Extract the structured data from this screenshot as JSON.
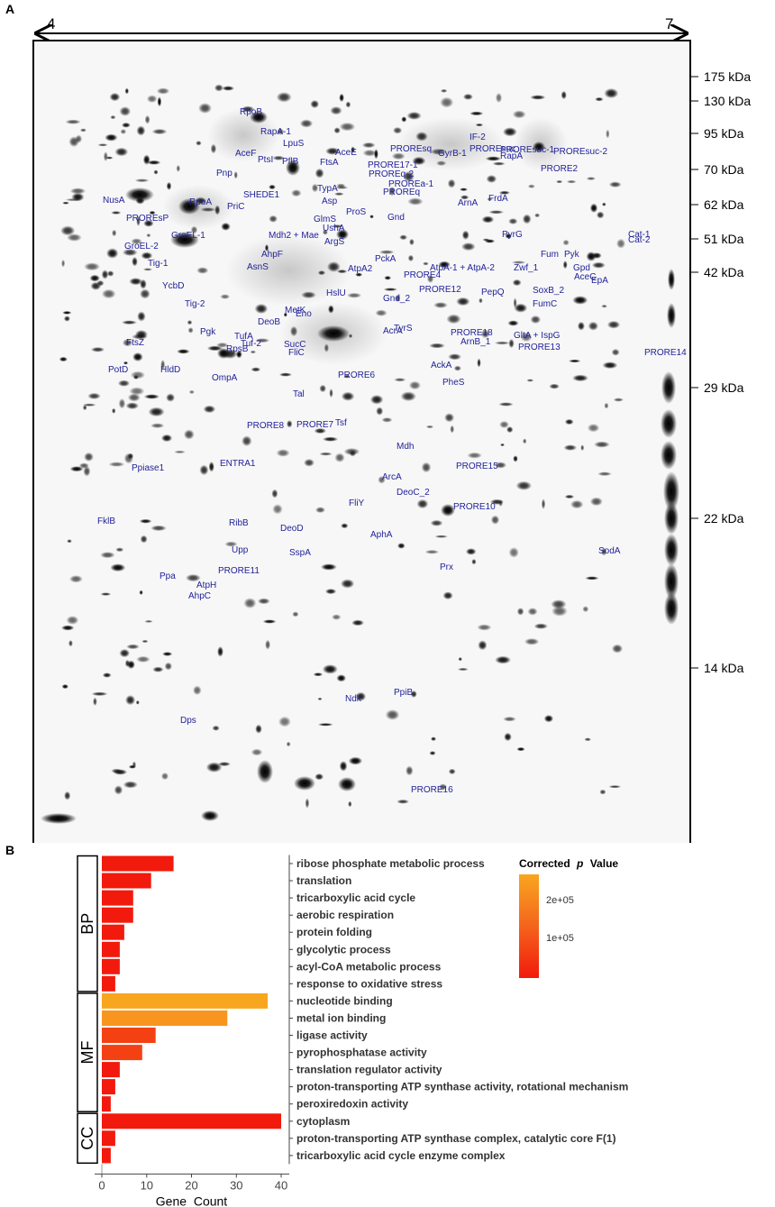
{
  "panel_a": {
    "letter": "A",
    "ph_left": "4",
    "ph_right": "7",
    "mw_markers": [
      "175 kDa",
      "130 kDa",
      "95 kDa",
      "70 kDa",
      "62 kDa",
      "51 kDa",
      "42 kDa",
      "29 kDa",
      "22 kDa",
      "14 kDa"
    ],
    "spot_labels": [
      "RpoB",
      "RapA-1",
      "LpuS",
      "AceE",
      "AceF",
      "PtsI",
      "PflB",
      "Pnp",
      "NusA",
      "RpoA",
      "PROREsP",
      "GroEL-2",
      "GroEL-1",
      "PriC",
      "SHEDE1",
      "Asp",
      "ProS",
      "GlmS",
      "UshA",
      "Gnd",
      "Mdh2 + Mae",
      "ArgS",
      "TypA",
      "FtsA",
      "IF-2",
      "GyrB-1",
      "PROREsuc",
      "RapA",
      "PROREsq",
      "PROREq-2",
      "PROREa-1",
      "PROREq",
      "PROREsuc-1",
      "PROREsuc-2",
      "PRORE17-1",
      "ArnA",
      "FrdA",
      "PyrG",
      "Cat-1",
      "Cat-2",
      "Fum",
      "Pyk",
      "Gpd",
      "AceC",
      "EpA",
      "Zwf_1",
      "PepQ",
      "SoxB_2",
      "FumC",
      "AtpA-1 + AtpA-2",
      "PckA",
      "AtpA2",
      "PRORE4",
      "PRORE12",
      "AhpF",
      "AsnS",
      "Tig-1",
      "Tig-2",
      "YcbD",
      "HslU",
      "DeoB",
      "MetK",
      "Eno",
      "Gnd_2",
      "TyrS",
      "AcrA",
      "PRORE18",
      "ArnB_1",
      "GltA + IspG",
      "PRORE13",
      "PRORE14",
      "FtsZ",
      "Pgk",
      "TufA",
      "Tuf-2",
      "RpsB",
      "SucC",
      "FliC",
      "PotD",
      "HldD",
      "OmpA",
      "PRORE6",
      "AckA",
      "PheS",
      "Tal",
      "PRORE8",
      "PRORE7",
      "Tsf",
      "Mdh",
      "ENTRA1",
      "Ppiase1",
      "PRORE15",
      "ArcA",
      "DeoC_2",
      "FliY",
      "PRORE10",
      "FklB",
      "RibB",
      "DeoD",
      "Upp",
      "SspA",
      "AphA",
      "SodA",
      "Prx",
      "Ppa",
      "AtpH",
      "AhpC",
      "PRORE11",
      "Ndk",
      "PpiB",
      "Dps",
      "PRORE16",
      "PRORE2"
    ]
  },
  "panel_b": {
    "letter": "B",
    "groups": [
      "BP",
      "MF",
      "CC"
    ],
    "legend_title": "Corrected",
    "legend_title_italic": "p",
    "legend_title_suffix": "Value",
    "legend_ticks": [
      "2e+05",
      "1e+05"
    ],
    "colors": {
      "low": "#f21a0c",
      "mid": "#f4641c",
      "high": "#f9a61f",
      "axis": "#444444"
    }
  },
  "chart_data": {
    "type": "bar",
    "orientation": "horizontal",
    "xlabel": "Gene_Count",
    "xlim": [
      0,
      42
    ],
    "xticks": [
      0,
      10,
      20,
      30,
      40
    ],
    "categories": [
      "ribose phosphate metabolic process",
      "translation",
      "tricarboxylic acid cycle",
      "aerobic respiration",
      "protein folding",
      "glycolytic process",
      "acyl-CoA metabolic process",
      "response to oxidative stress",
      "nucleotide binding",
      "metal ion binding",
      "ligase activity",
      "pyrophosphatase activity",
      "translation regulator activity",
      "proton-transporting ATP synthase activity, rotational mechanism",
      "peroxiredoxin activity",
      "cytoplasm",
      "proton-transporting ATP synthase complex, catalytic core F(1)",
      "tricarboxylic acid cycle enzyme complex"
    ],
    "values": [
      16,
      11,
      7,
      7,
      5,
      4,
      4,
      3,
      37,
      28,
      12,
      9,
      4,
      3,
      2,
      40,
      3,
      2
    ],
    "group_of_term": [
      "BP",
      "BP",
      "BP",
      "BP",
      "BP",
      "BP",
      "BP",
      "BP",
      "MF",
      "MF",
      "MF",
      "MF",
      "MF",
      "MF",
      "MF",
      "CC",
      "CC",
      "CC"
    ],
    "corrected_p_value": [
      0,
      0,
      0,
      0,
      0,
      0,
      0,
      0,
      230000,
      200000,
      60000,
      60000,
      0,
      0,
      0,
      0,
      0,
      0
    ],
    "color_scale_ticks": [
      100000,
      200000
    ]
  }
}
